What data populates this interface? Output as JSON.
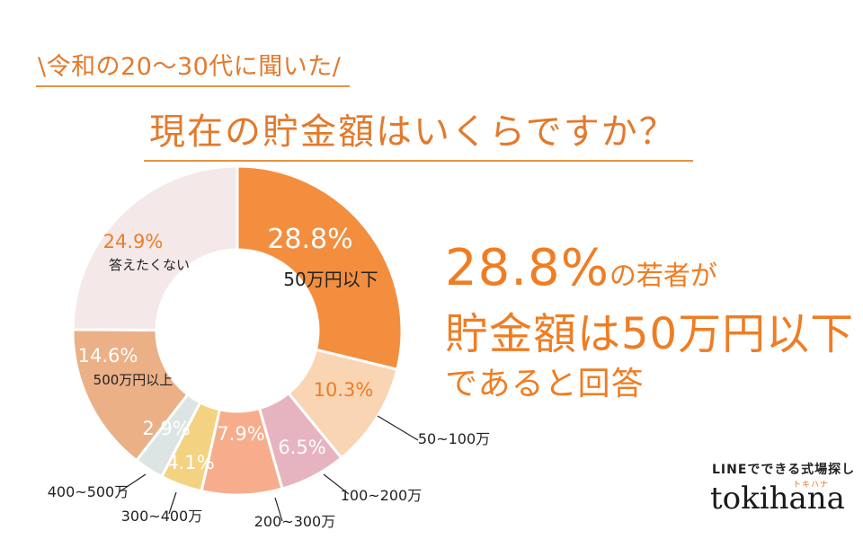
{
  "header": {
    "subtitle": "\\令和の20〜30代に聞いた/",
    "title": "現在の貯金額はいくらですか？"
  },
  "callout": {
    "percent": "28.8%",
    "suffix": "の若者が",
    "line2": "貯金額は50万円以下",
    "line3": "であると回答"
  },
  "brand": {
    "tagline": "LINEでできる式場探し",
    "kana": "トキハナ",
    "name": "tokihana"
  },
  "colors": {
    "accent": "#ef7d23",
    "text_orange": "#e27a2d",
    "percent_light": "#ffffff",
    "percent_orange": "#ef7d23"
  },
  "chart_data": {
    "type": "pie",
    "donut": true,
    "start": "12 o'clock",
    "direction": "clockwise",
    "slices": [
      {
        "pct": 28.8,
        "pct_label": "28.8%",
        "label": "50万円以下",
        "color": "#f38e3f",
        "pct_color": "#ffffff",
        "label_color": "#222222",
        "label_placement": "inside"
      },
      {
        "pct": 10.3,
        "pct_label": "10.3%",
        "label": "50~100万",
        "color": "#f9d5b4",
        "pct_color": "#ef7d23",
        "label_placement": "outside"
      },
      {
        "pct": 6.5,
        "pct_label": "6.5%",
        "label": "100~200万",
        "color": "#e6b4bf",
        "pct_color": "#ffffff",
        "label_placement": "outside"
      },
      {
        "pct": 7.9,
        "pct_label": "7.9%",
        "label": "200~300万",
        "color": "#f7ad8b",
        "pct_color": "#ffffff",
        "label_placement": "outside"
      },
      {
        "pct": 4.1,
        "pct_label": "4.1%",
        "label": "300~400万",
        "color": "#f3d381",
        "pct_color": "#ffffff",
        "label_placement": "outside"
      },
      {
        "pct": 2.9,
        "pct_label": "2.9%",
        "label": "400~500万",
        "color": "#dde4e4",
        "pct_color": "#ffffff",
        "label_placement": "outside"
      },
      {
        "pct": 14.6,
        "pct_label": "14.6%",
        "label": "500万円以上",
        "color": "#ecb087",
        "pct_color": "#ffffff",
        "label_color": "#222222",
        "label_placement": "inside"
      },
      {
        "pct": 24.9,
        "pct_label": "24.9%",
        "label": "答えたくない",
        "color": "#f4e8e8",
        "pct_color": "#ef7d23",
        "label_color": "#222222",
        "label_placement": "inside"
      }
    ]
  }
}
